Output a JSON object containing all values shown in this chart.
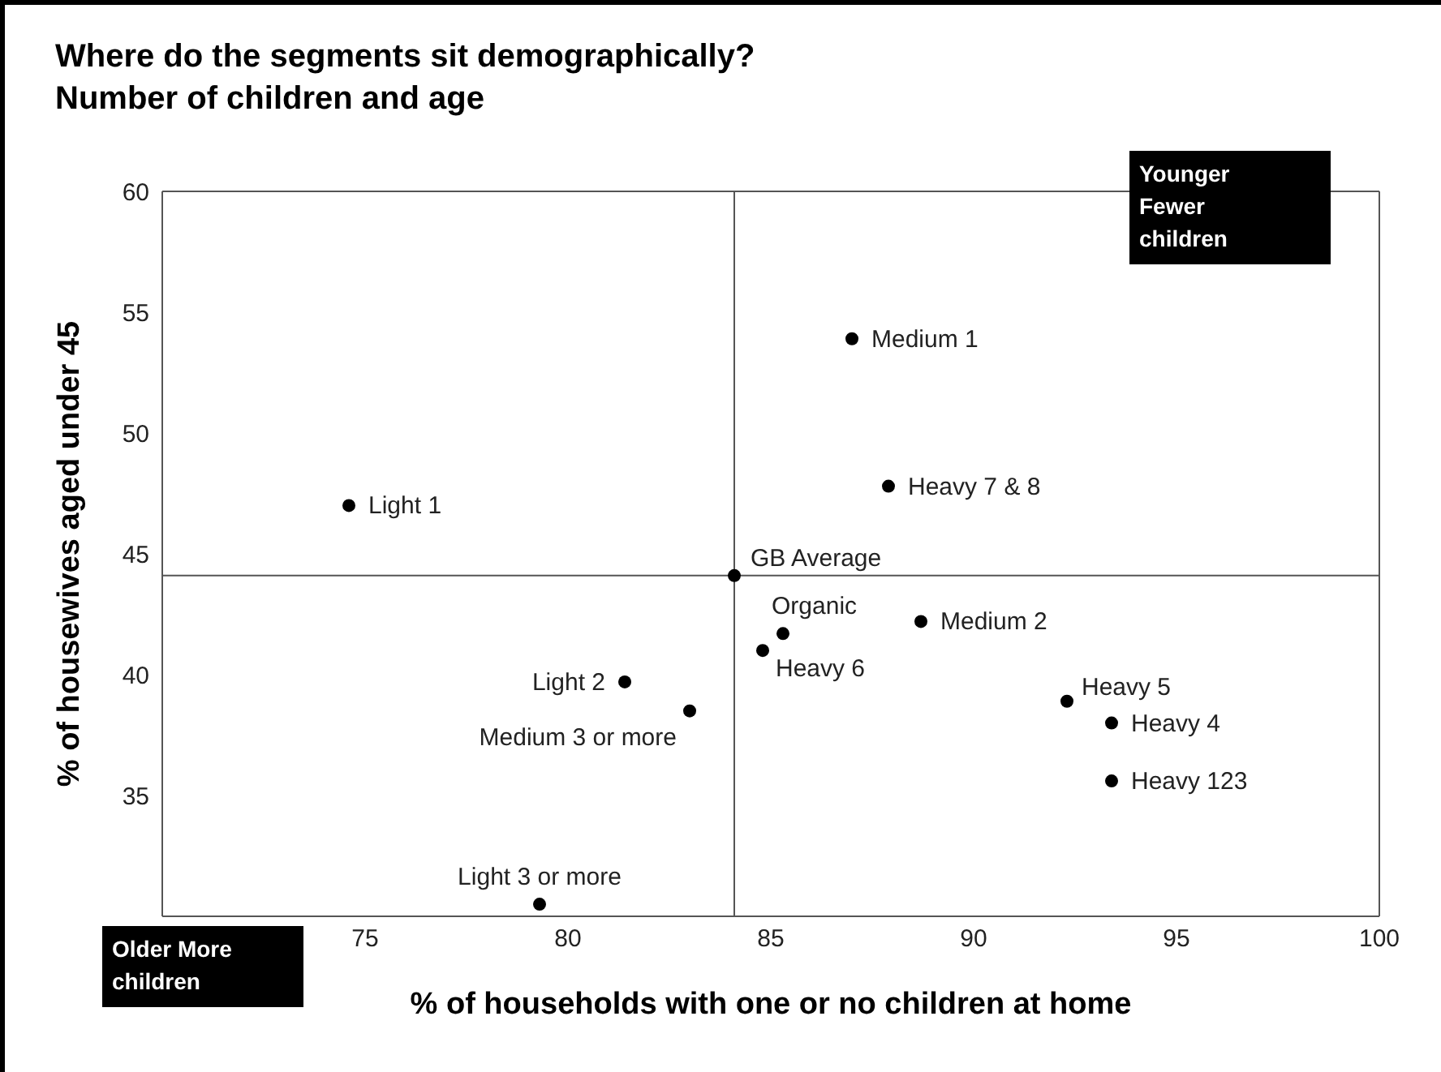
{
  "chart_data": {
    "type": "scatter",
    "title": "Where do the segments sit demographically?",
    "subtitle": "Number of children and age",
    "xlabel": "% of households with one or no children at home",
    "ylabel": "% of housewives aged under 45",
    "series": [
      {
        "color": "#000000",
        "x": [
          74.6,
          81.4,
          83.0,
          79.3,
          84.1,
          85.3,
          84.8,
          87.0,
          87.9,
          88.7,
          92.3,
          93.4,
          93.4
        ],
        "values": [
          47.0,
          39.7,
          38.5,
          30.5,
          44.1,
          41.7,
          41.0,
          53.9,
          47.8,
          42.2,
          38.9,
          38.0,
          35.6
        ]
      }
    ],
    "xlim": [
      70,
      100
    ],
    "xticks": [
      75,
      80,
      85,
      90,
      95,
      100
    ],
    "ylim": [
      30,
      60
    ],
    "yticks": [
      35,
      40,
      45,
      50,
      55,
      60
    ],
    "ref_lines": [
      {
        "axis": "x",
        "value": 84.1,
        "color": "#555555"
      },
      {
        "axis": "y",
        "value": 44.1,
        "color": "#555555"
      }
    ],
    "annotations": [
      {
        "text": "Light 1",
        "x": 74.6,
        "y": 47.0
      },
      {
        "text": "Light 2",
        "x": 81.4,
        "y": 39.7
      },
      {
        "text": "Medium 3 or more",
        "x": 83.0,
        "y": 38.5
      },
      {
        "text": "Light 3 or more",
        "x": 79.3,
        "y": 30.5
      },
      {
        "text": "GB Average",
        "x": 84.1,
        "y": 44.1
      },
      {
        "text": "Organic",
        "x": 85.3,
        "y": 41.7
      },
      {
        "text": "Heavy 6",
        "x": 84.8,
        "y": 41.0
      },
      {
        "text": "Medium 1",
        "x": 87.0,
        "y": 53.9
      },
      {
        "text": "Heavy 7 & 8",
        "x": 87.9,
        "y": 47.8
      },
      {
        "text": "Medium 2",
        "x": 88.7,
        "y": 42.2
      },
      {
        "text": "Heavy 5",
        "x": 92.3,
        "y": 38.9
      },
      {
        "text": "Heavy 4",
        "x": 93.4,
        "y": 38.0
      },
      {
        "text": "Heavy 123",
        "x": 93.4,
        "y": 35.6
      },
      "Younger Fewer children",
      "Older More children"
    ],
    "marker": "circle"
  }
}
